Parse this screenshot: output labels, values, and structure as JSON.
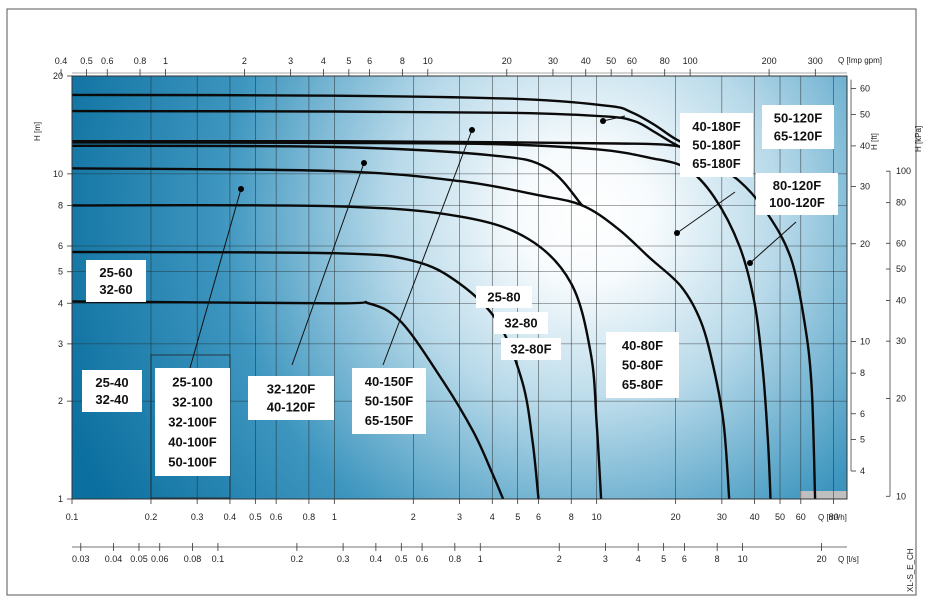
{
  "chart_data": {
    "type": "line",
    "title": "",
    "x_axis": {
      "unit": "Q [m³/h]",
      "scale": "log",
      "range": [
        0.1,
        90
      ],
      "ticks": [
        "0.1",
        "0.2",
        "0.3",
        "0.4",
        "0.5",
        "0.6",
        "0.8",
        "1",
        "2",
        "3",
        "4",
        "5",
        "6",
        "8",
        "10",
        "20",
        "30",
        "40",
        "50",
        "60",
        "80"
      ]
    },
    "top_axis": {
      "unit": "Q [Imp gpm]",
      "ticks": [
        "0.4",
        "0.5",
        "0.6",
        "0.8",
        "1",
        "2",
        "3",
        "4",
        "5",
        "6",
        "8",
        "10",
        "20",
        "30",
        "40",
        "50",
        "60",
        "80",
        "100",
        "200",
        "300"
      ],
      "values": [
        0.4,
        0.5,
        0.6,
        0.8,
        1,
        2,
        3,
        4,
        5,
        6,
        8,
        10,
        20,
        30,
        40,
        50,
        60,
        80,
        100,
        200,
        300
      ]
    },
    "bottom_axis": {
      "unit": "Q [l/s]",
      "ticks": [
        "0.03",
        "0.04",
        "0.05",
        "0.06",
        "0.08",
        "0.1",
        "0.2",
        "0.3",
        "0.4",
        "0.5",
        "0.6",
        "0.8",
        "1",
        "2",
        "3",
        "4",
        "5",
        "6",
        "8",
        "10",
        "20"
      ],
      "values": [
        0.03,
        0.04,
        0.05,
        0.06,
        0.08,
        0.1,
        0.2,
        0.3,
        0.4,
        0.5,
        0.6,
        0.8,
        1,
        2,
        3,
        4,
        5,
        6,
        8,
        10,
        20
      ]
    },
    "y_axis": {
      "unit": "H [m]",
      "scale": "log",
      "range": [
        1,
        20
      ],
      "ticks": [
        "1",
        "2",
        "3",
        "4",
        "5",
        "6",
        "8",
        "10",
        "20"
      ]
    },
    "right_axis_ft": {
      "unit": "H [ft]",
      "ticks": [
        "4",
        "5",
        "6",
        "8",
        "10",
        "20",
        "30",
        "40",
        "50",
        "60"
      ],
      "values": [
        4,
        5,
        6,
        8,
        10,
        20,
        30,
        40,
        50,
        60
      ]
    },
    "right_axis_kpa": {
      "unit": "H [kPa]",
      "ticks": [
        "10",
        "20",
        "30",
        "40",
        "50",
        "60",
        "80",
        "100"
      ],
      "values": [
        10,
        20,
        30,
        40,
        50,
        60,
        80,
        100
      ]
    },
    "code": "XL-S_E_CH",
    "curves": [
      {
        "points": [
          [
            0.1,
            4.05
          ],
          [
            1.0,
            4.0
          ],
          [
            1.35,
            4.0
          ],
          [
            1.8,
            3.5
          ],
          [
            2.6,
            2.3
          ],
          [
            3.4,
            1.6
          ],
          [
            4.0,
            1.2
          ],
          [
            4.4,
            1.0
          ]
        ]
      },
      {
        "points": [
          [
            0.1,
            5.75
          ],
          [
            1.0,
            5.7
          ],
          [
            2.0,
            5.4
          ],
          [
            3.0,
            4.6
          ],
          [
            4.2,
            3.5
          ],
          [
            5.2,
            2.3
          ],
          [
            5.7,
            1.5
          ],
          [
            6.0,
            1.0
          ]
        ]
      },
      {
        "points": [
          [
            0.1,
            8.0
          ],
          [
            1.0,
            7.95
          ],
          [
            3.0,
            7.4
          ],
          [
            5.5,
            6.3
          ],
          [
            8.0,
            4.6
          ],
          [
            9.5,
            2.8
          ],
          [
            10.0,
            1.7
          ],
          [
            10.4,
            1.0
          ]
        ]
      },
      {
        "points": [
          [
            0.1,
            10.4
          ],
          [
            1.0,
            10.2
          ],
          [
            3.0,
            9.5
          ],
          [
            6.0,
            8.6
          ],
          [
            8.8,
            8.0
          ],
          [
            12.0,
            6.8
          ],
          [
            16.0,
            5.5
          ],
          [
            21.0,
            4.5
          ],
          [
            25.0,
            3.5
          ],
          [
            28.0,
            2.5
          ],
          [
            30.5,
            1.7
          ],
          [
            32.0,
            1.0
          ]
        ]
      },
      {
        "points": [
          [
            0.1,
            12.2
          ],
          [
            1.0,
            12.1
          ],
          [
            4.0,
            11.4
          ],
          [
            6.5,
            10.4
          ],
          [
            8.8,
            8.0
          ]
        ]
      },
      {
        "points": [
          [
            0.1,
            12.5
          ],
          [
            1.0,
            12.45
          ],
          [
            4.0,
            12.35
          ],
          [
            10.0,
            11.9
          ],
          [
            16.0,
            11.2
          ],
          [
            22.0,
            10.4
          ],
          [
            28.0,
            8.5
          ],
          [
            35.0,
            6.0
          ],
          [
            40.0,
            4.0
          ],
          [
            43.0,
            2.5
          ],
          [
            45.0,
            1.5
          ],
          [
            46.0,
            1.0
          ]
        ]
      },
      {
        "points": [
          [
            0.1,
            12.6
          ],
          [
            1.0,
            12.6
          ],
          [
            5.0,
            12.5
          ],
          [
            12.0,
            12.4
          ],
          [
            18.0,
            12.3
          ],
          [
            24.0,
            11.9
          ]
        ]
      },
      {
        "points": [
          [
            0.1,
            15.6
          ],
          [
            1.0,
            15.55
          ],
          [
            5.0,
            15.4
          ],
          [
            11.0,
            15.0
          ],
          [
            14.0,
            14.5
          ],
          [
            16.5,
            13.5
          ],
          [
            20.0,
            12.3
          ],
          [
            26.0,
            11.0
          ],
          [
            35.0,
            9.5
          ],
          [
            45.0,
            7.5
          ],
          [
            55.0,
            5.5
          ],
          [
            62.0,
            3.5
          ],
          [
            66.0,
            2.2
          ],
          [
            68.0,
            1.0
          ]
        ]
      },
      {
        "points": [
          [
            0.1,
            17.5
          ],
          [
            1.0,
            17.4
          ],
          [
            5.0,
            17.0
          ],
          [
            11.0,
            16.2
          ],
          [
            13.5,
            15.5
          ],
          [
            16.5,
            14.2
          ],
          [
            20.0,
            12.8
          ],
          [
            24.0,
            11.9
          ]
        ]
      }
    ],
    "labels": [
      {
        "text": "25-60"
      },
      {
        "text": "32-60"
      },
      {
        "text": "25-40"
      },
      {
        "text": "32-40"
      },
      {
        "text": "25-100"
      },
      {
        "text": "32-100"
      },
      {
        "text": "32-100F"
      },
      {
        "text": "40-100F"
      },
      {
        "text": "50-100F"
      },
      {
        "text": "32-120F"
      },
      {
        "text": "40-120F"
      },
      {
        "text": "40-150F"
      },
      {
        "text": "50-150F"
      },
      {
        "text": "65-150F"
      },
      {
        "text": "25-80"
      },
      {
        "text": "32-80"
      },
      {
        "text": "32-80F"
      },
      {
        "text": "40-80F"
      },
      {
        "text": "50-80F"
      },
      {
        "text": "65-80F"
      },
      {
        "text": "40-180F"
      },
      {
        "text": "50-180F"
      },
      {
        "text": "65-180F"
      },
      {
        "text": "50-120F"
      },
      {
        "text": "65-120F"
      },
      {
        "text": "80-120F"
      },
      {
        "text": "100-120F"
      }
    ]
  }
}
